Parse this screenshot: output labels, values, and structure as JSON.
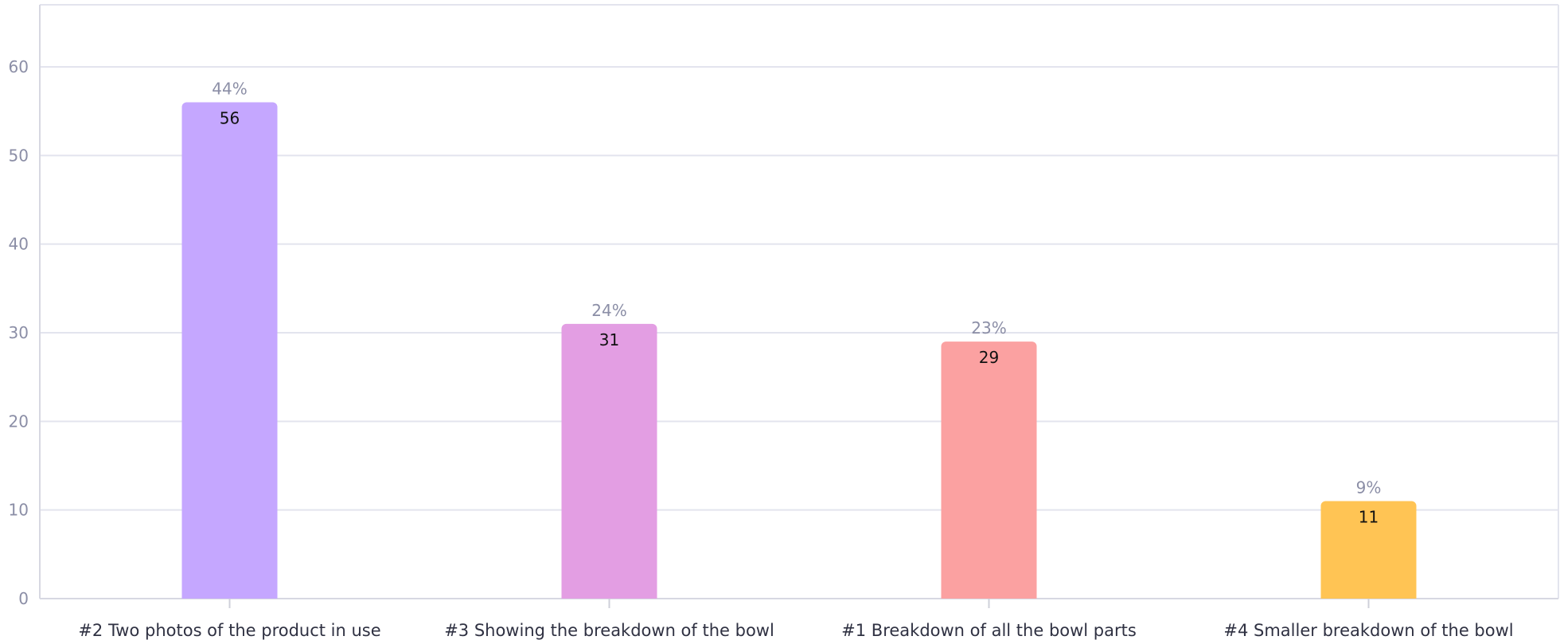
{
  "chart_data": {
    "type": "bar",
    "categories": [
      "#2 Two photos of the product in use",
      "#3 Showing the breakdown of the bowl",
      "#1 Breakdown of all the bowl parts",
      "#4 Smaller breakdown of the bowl"
    ],
    "values": [
      56,
      31,
      29,
      11
    ],
    "percent_labels": [
      "44%",
      "24%",
      "23%",
      "9%"
    ],
    "colors": [
      "#c5a7ff",
      "#e39ee3",
      "#fba1a1",
      "#ffc454"
    ],
    "title": "",
    "xlabel": "",
    "ylabel": "",
    "ylim": [
      0,
      60
    ],
    "yticks": [
      0,
      10,
      20,
      30,
      40,
      50,
      60
    ],
    "grid": true,
    "legend": "none"
  }
}
